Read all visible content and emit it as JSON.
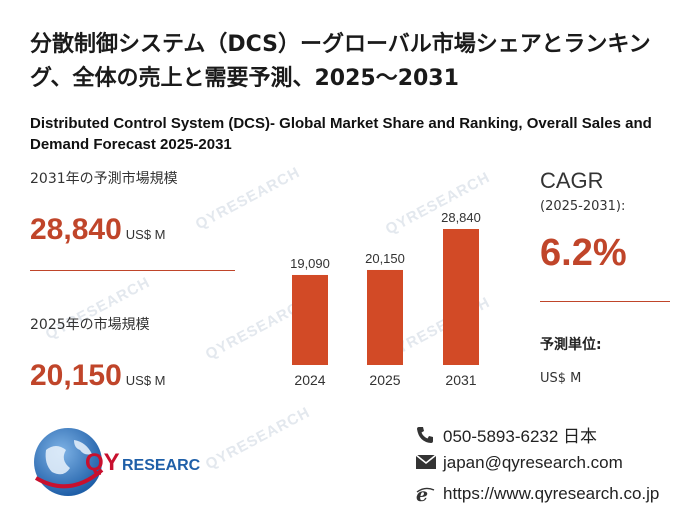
{
  "title_ja": "分散制御システム（DCS）ーグローバル市場シェアとランキング、全体の売上と需要予測、2025～2031",
  "title_en": "Distributed Control System (DCS)- Global Market Share and Ranking, Overall Sales and Demand Forecast 2025-2031",
  "metrics": {
    "forecast_label": "2031年の予測市場規模",
    "forecast_value": "28,840",
    "current_label": "2025年の市場規模",
    "current_value": "20,150",
    "unit": "US$ M"
  },
  "cagr": {
    "label": "CAGR",
    "period": "(2025-2031):",
    "value": "6.2%"
  },
  "forecast_unit": {
    "title": "予測単位:",
    "value": "US$ M"
  },
  "chart_data": {
    "type": "bar",
    "categories": [
      "2024",
      "2025",
      "2031"
    ],
    "values": [
      19090,
      20150,
      28840
    ],
    "value_labels": [
      "19,090",
      "20,150",
      "28,840"
    ],
    "bar_color": "#d24a26",
    "ylim": [
      0,
      28840
    ],
    "grid": false
  },
  "contact": {
    "phone": "050-5893-6232 日本",
    "email": "japan@qyresearch.com",
    "website": "https://www.qyresearch.co.jp"
  },
  "logo": {
    "text": "QYRESEARCH",
    "primary_color": "#c8102e",
    "secondary_color": "#1f5fa8"
  },
  "watermark": "QYRESEARCH",
  "colors": {
    "accent": "#c0452a"
  }
}
